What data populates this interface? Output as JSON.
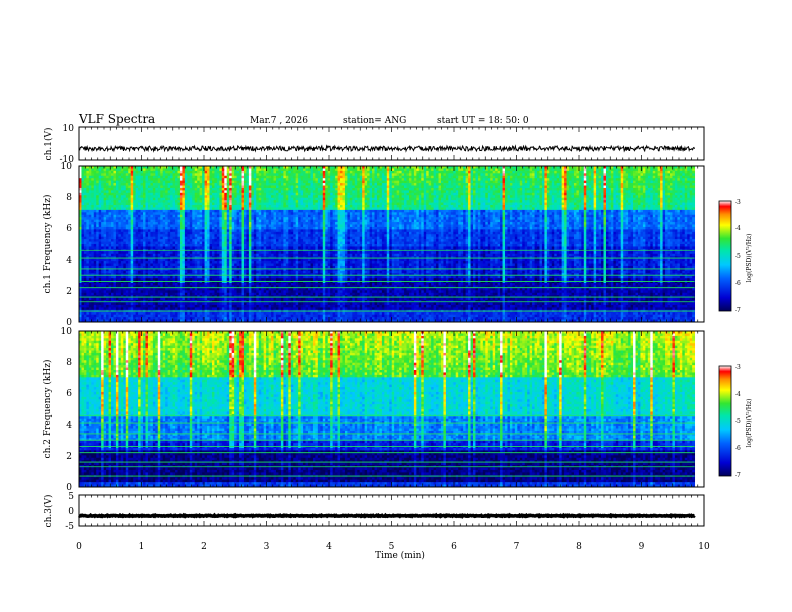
{
  "header": {
    "title": "VLF Spectra",
    "date": "Mar.7 , 2026",
    "station": "station= ANG",
    "start": "start UT =  18: 50: 0"
  },
  "chart_data": [
    {
      "type": "line",
      "name": "ch1-waveform",
      "ylabel": "ch.1(V)",
      "ylim": [
        -10,
        10
      ],
      "y_ticks": [
        "10",
        "-10"
      ],
      "mean_level": -3,
      "x_range_min": [
        0,
        9.85
      ]
    },
    {
      "type": "heatmap",
      "name": "ch1-spectrogram",
      "ylabel": "ch.1 Frequency (kHz)",
      "ylim": [
        0,
        10
      ],
      "y_ticks": [
        "0",
        "2",
        "4",
        "6",
        "8",
        "10"
      ],
      "x_range_min": [
        0,
        9.85
      ],
      "colorbar": {
        "label": "log(PSD)(V²/Hz)",
        "range": [
          -7,
          -3
        ],
        "ticks": [
          "-3",
          "-4",
          "-5",
          "-6",
          "-7"
        ]
      }
    },
    {
      "type": "heatmap",
      "name": "ch2-spectrogram",
      "ylabel": "ch.2 Frequency (kHz)",
      "ylim": [
        0,
        10
      ],
      "y_ticks": [
        "0",
        "2",
        "4",
        "6",
        "8",
        "10"
      ],
      "x_range_min": [
        0,
        9.85
      ],
      "colorbar": {
        "label": "log(PSD)(V²/Hz)",
        "range": [
          -7,
          -3
        ],
        "ticks": [
          "-3",
          "-4",
          "-5",
          "-6",
          "-7"
        ]
      }
    },
    {
      "type": "line",
      "name": "ch3-waveform",
      "ylabel": "ch.3(V)",
      "ylim": [
        -5,
        5
      ],
      "y_ticks": [
        "5",
        "0",
        "-5"
      ],
      "mean_level": -1.7,
      "x_range_min": [
        0,
        9.85
      ]
    }
  ],
  "xaxis": {
    "label": "Time  (min)",
    "range": [
      0,
      10
    ],
    "ticks": [
      "0",
      "1",
      "2",
      "3",
      "4",
      "5",
      "6",
      "7",
      "8",
      "9",
      "10"
    ]
  }
}
